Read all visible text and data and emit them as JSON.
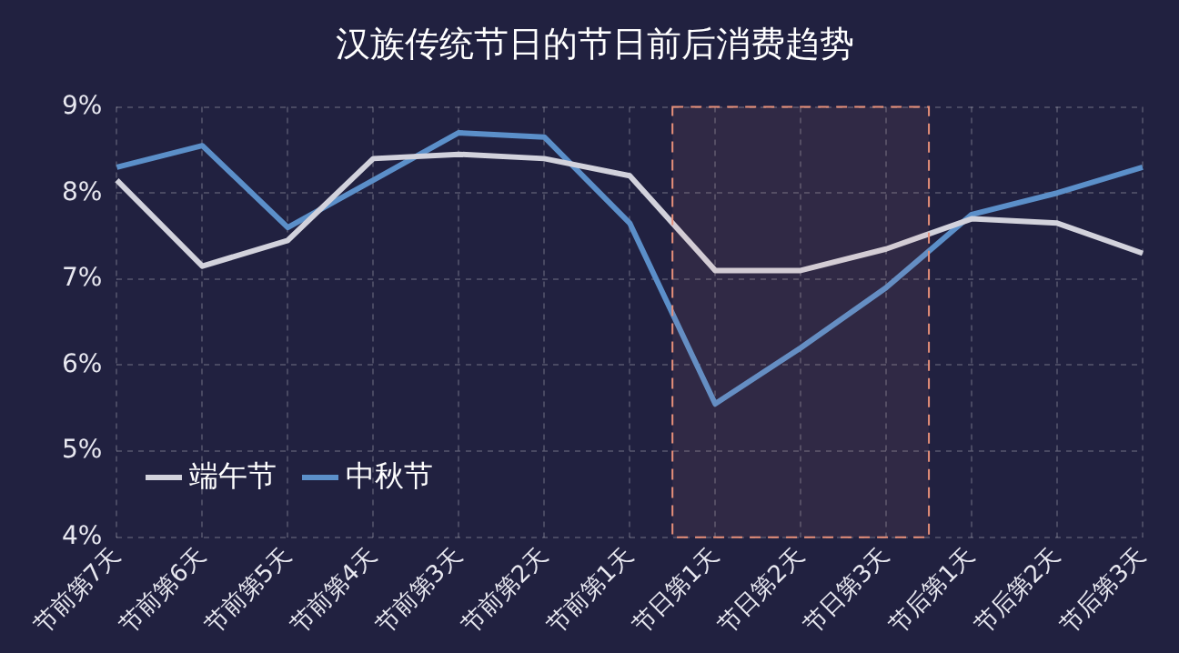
{
  "chart_data": {
    "type": "line",
    "title": "汉族传统节日的节日前后消费趋势",
    "categories": [
      "节前第7天",
      "节前第6天",
      "节前第5天",
      "节前第4天",
      "节前第3天",
      "节前第2天",
      "节前第1天",
      "节日第1天",
      "节日第2天",
      "节日第3天",
      "节后第1天",
      "节后第2天",
      "节后第3天"
    ],
    "series": [
      {
        "name": "端午节",
        "color": "#d2d2dc",
        "values": [
          8.15,
          7.15,
          7.45,
          8.4,
          8.45,
          8.4,
          8.2,
          7.1,
          7.1,
          7.35,
          7.7,
          7.65,
          7.3
        ]
      },
      {
        "name": "中秋节",
        "color": "#5b8fc9",
        "values": [
          8.3,
          8.55,
          7.6,
          8.15,
          8.7,
          8.65,
          7.65,
          5.55,
          6.2,
          6.9,
          7.75,
          8.0,
          8.3
        ]
      }
    ],
    "ylim": [
      4,
      9
    ],
    "yticks": [
      {
        "value": 4,
        "label": "4%"
      },
      {
        "value": 5,
        "label": "5%"
      },
      {
        "value": 6,
        "label": "6%"
      },
      {
        "value": 7,
        "label": "7%"
      },
      {
        "value": 8,
        "label": "8%"
      },
      {
        "value": 9,
        "label": "9%"
      }
    ],
    "bands": [
      {
        "axis": "x",
        "from": "节日第1天",
        "to": "节日第3天",
        "color": "#e8907a"
      }
    ],
    "grid": true,
    "legend": "bottom left",
    "marker": "none",
    "line_style": "solid"
  }
}
